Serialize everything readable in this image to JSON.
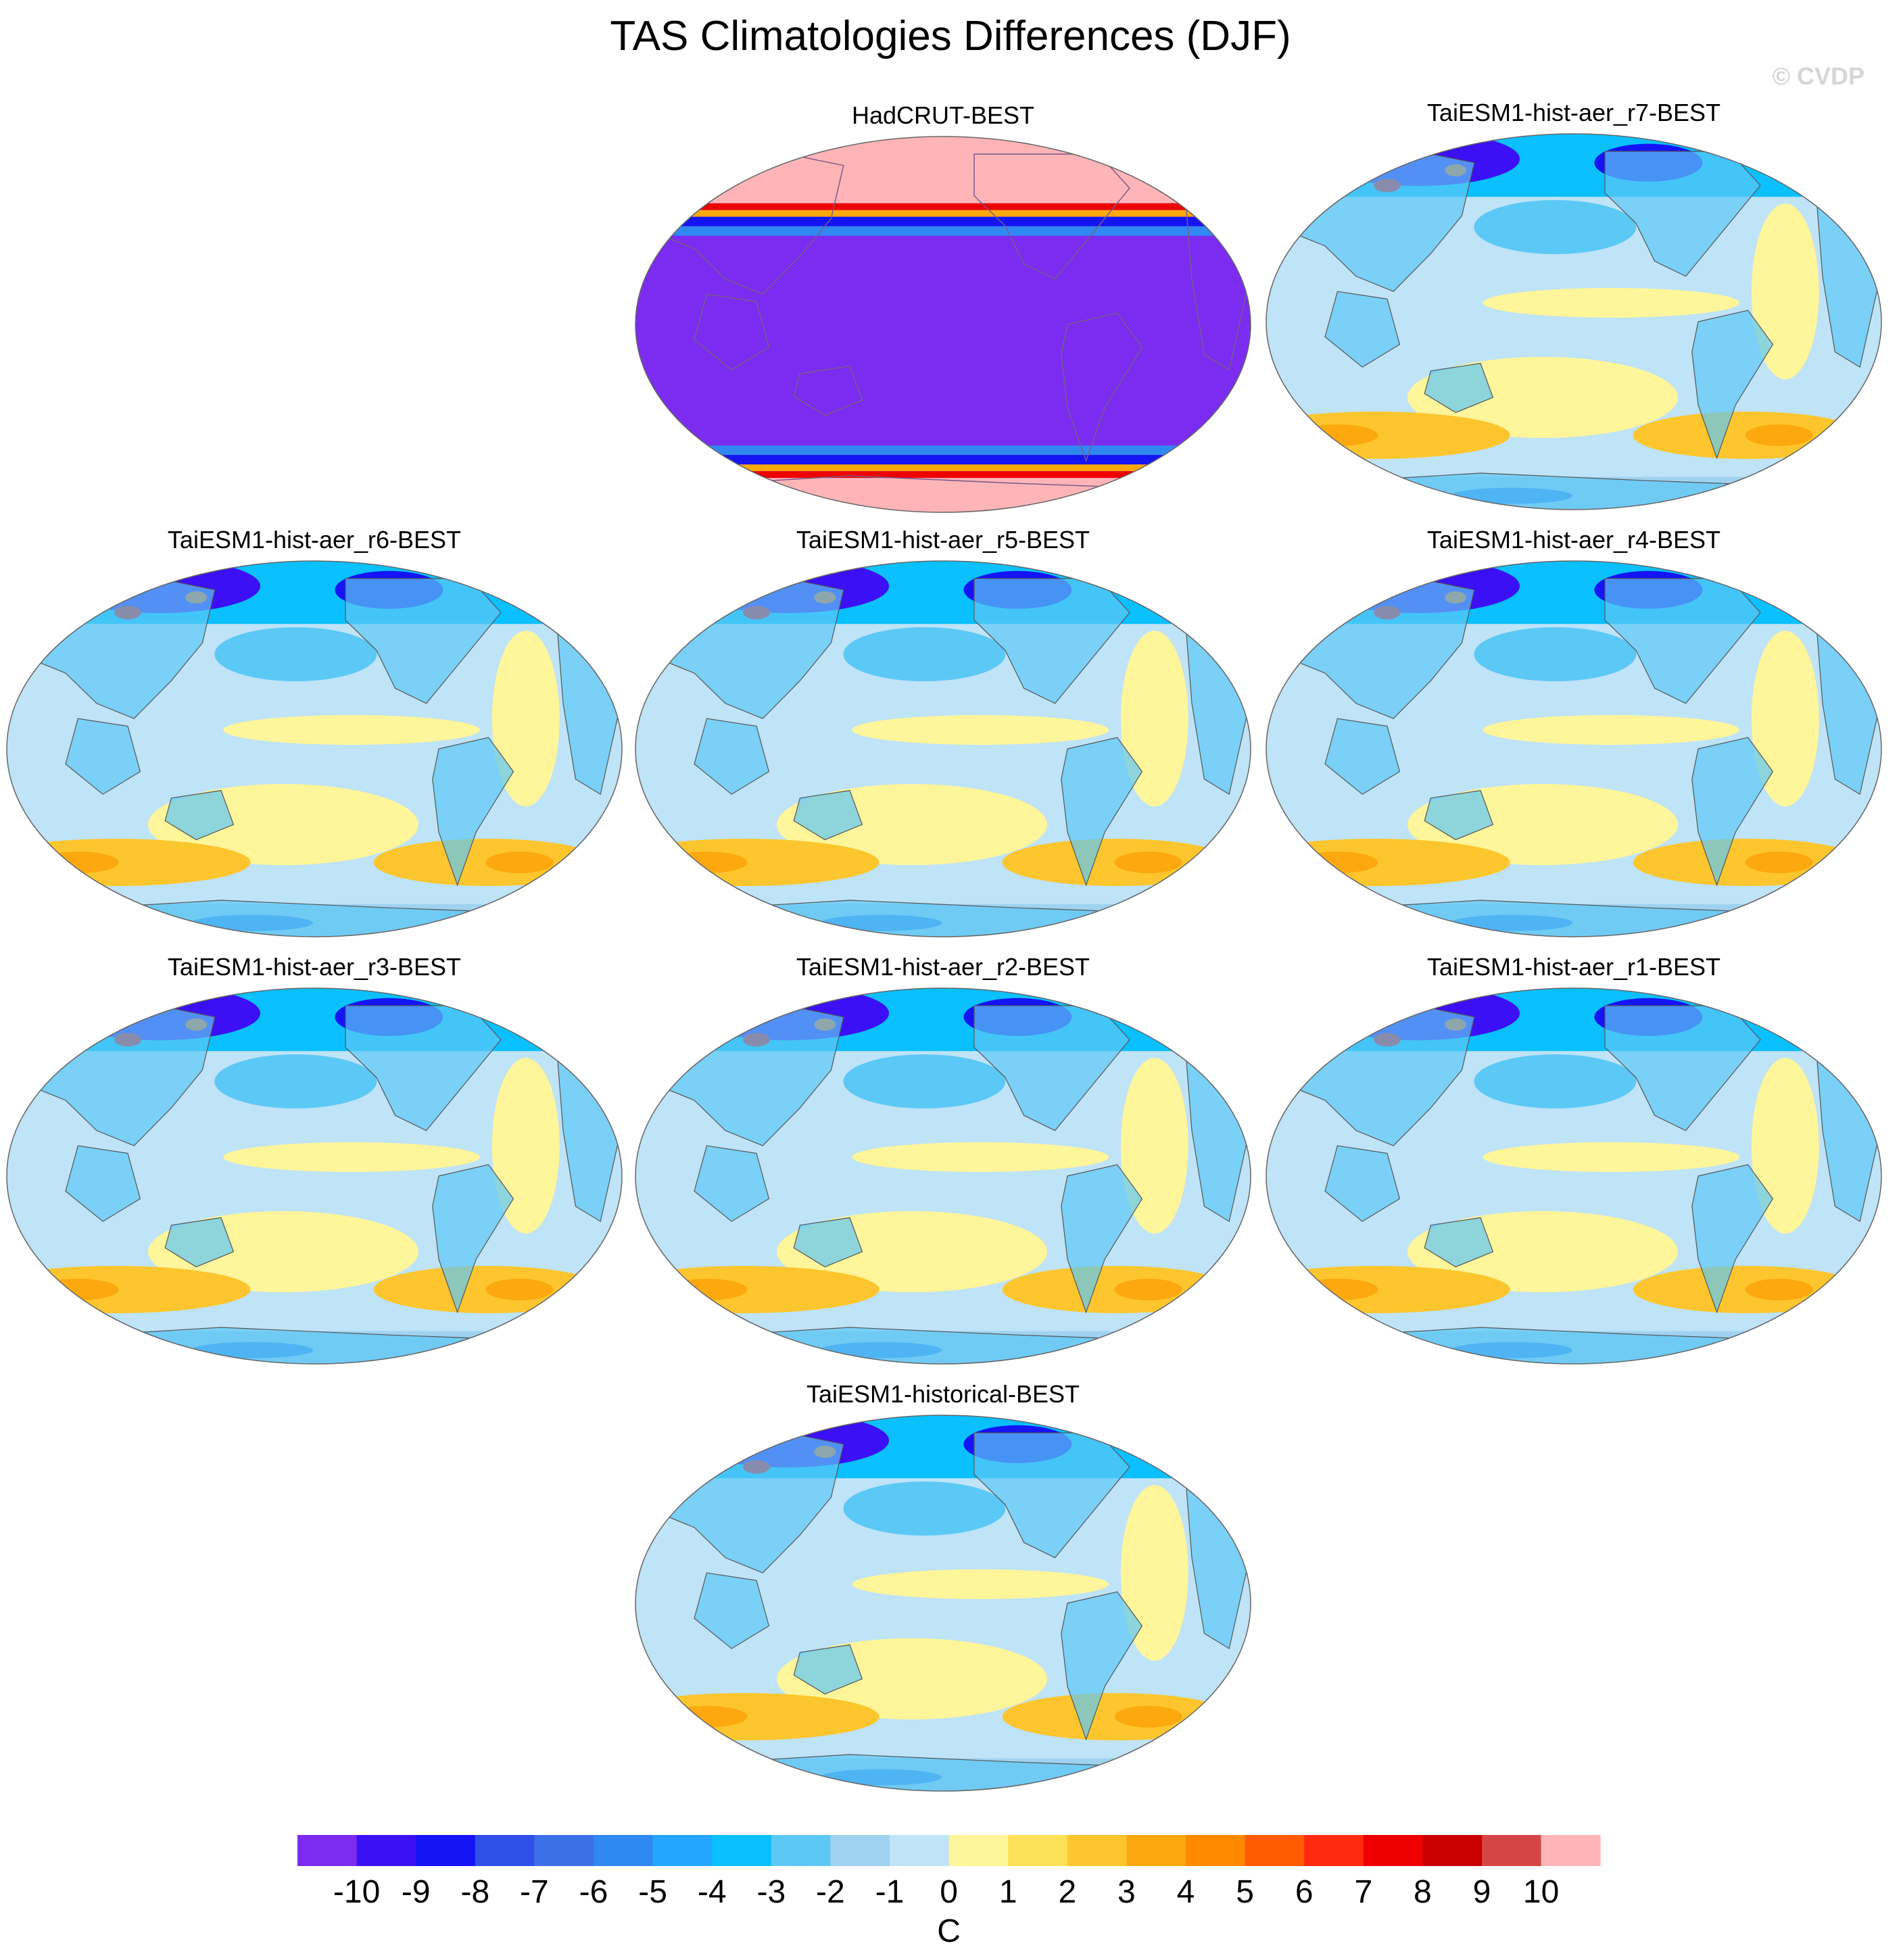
{
  "chart_data": {
    "type": "heatmap",
    "title": "TAS Climatologies Differences (DJF)",
    "credit": "© CVDP",
    "projection": "Robinson, Pacific-centered global map",
    "units": "C",
    "panels": [
      {
        "title": "HadCRUT-BEST",
        "style": "mask"
      },
      {
        "title": "TaiESM1-hist-aer_r7-BEST",
        "style": "model"
      },
      {
        "title": "TaiESM1-hist-aer_r6-BEST",
        "style": "model"
      },
      {
        "title": "TaiESM1-hist-aer_r5-BEST",
        "style": "model"
      },
      {
        "title": "TaiESM1-hist-aer_r4-BEST",
        "style": "model"
      },
      {
        "title": "TaiESM1-hist-aer_r3-BEST",
        "style": "model"
      },
      {
        "title": "TaiESM1-hist-aer_r2-BEST",
        "style": "model"
      },
      {
        "title": "TaiESM1-hist-aer_r1-BEST",
        "style": "model"
      },
      {
        "title": "TaiESM1-historical-BEST",
        "style": "model"
      }
    ],
    "colorbar": {
      "label": "C",
      "ticks": [
        "-10",
        "-9",
        "-8",
        "-7",
        "-6",
        "-5",
        "-4",
        "-3",
        "-2",
        "-1",
        "0",
        "1",
        "2",
        "3",
        "4",
        "5",
        "6",
        "7",
        "8",
        "9",
        "10"
      ],
      "colors": [
        "#7b2cf0",
        "#3b10f5",
        "#1414f5",
        "#2f50e8",
        "#3c70e8",
        "#3088f2",
        "#22a6ff",
        "#0ac0ff",
        "#5cc8f5",
        "#9fd2f0",
        "#bfe3f7",
        "#fff59a",
        "#fde158",
        "#fdc62e",
        "#fda80e",
        "#ff8a00",
        "#ff5a00",
        "#ff2a10",
        "#ee0000",
        "#c80000",
        "#d64545",
        "#ffb5b8"
      ]
    }
  }
}
